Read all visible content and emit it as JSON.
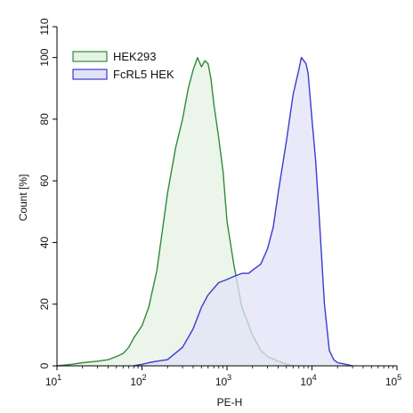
{
  "chart_data": {
    "type": "area",
    "xlabel": "PE-H",
    "ylabel": "Count [%]",
    "xscale": "log",
    "xlim": [
      10,
      100000
    ],
    "ylim": [
      0,
      110
    ],
    "grid": false,
    "legend_position": "top-left",
    "x_ticks": [
      {
        "value": 10,
        "base": "10",
        "exp": "1"
      },
      {
        "value": 100,
        "base": "10",
        "exp": "2"
      },
      {
        "value": 1000,
        "base": "10",
        "exp": "3"
      },
      {
        "value": 10000,
        "base": "10",
        "exp": "4"
      },
      {
        "value": 100000,
        "base": "10",
        "exp": "5"
      }
    ],
    "y_ticks": [
      {
        "value": 0,
        "label": "0"
      },
      {
        "value": 20,
        "label": "20"
      },
      {
        "value": 40,
        "label": "40"
      },
      {
        "value": 60,
        "label": "60"
      },
      {
        "value": 80,
        "label": "80"
      },
      {
        "value": 100,
        "label": "100"
      },
      {
        "value": 110,
        "label": "110"
      }
    ],
    "series": [
      {
        "name": "HEK293",
        "line_color": "#2e8b3a",
        "fill_color": "#e6f2e3",
        "points": [
          [
            10,
            0
          ],
          [
            15,
            0.5
          ],
          [
            20,
            1
          ],
          [
            30,
            1.5
          ],
          [
            40,
            2
          ],
          [
            50,
            3
          ],
          [
            60,
            4
          ],
          [
            70,
            6
          ],
          [
            80,
            9
          ],
          [
            100,
            13
          ],
          [
            120,
            19
          ],
          [
            150,
            31
          ],
          [
            200,
            56
          ],
          [
            250,
            71
          ],
          [
            300,
            80
          ],
          [
            350,
            90
          ],
          [
            400,
            96
          ],
          [
            450,
            100
          ],
          [
            500,
            97
          ],
          [
            550,
            99
          ],
          [
            600,
            98
          ],
          [
            650,
            93
          ],
          [
            700,
            85
          ],
          [
            800,
            74
          ],
          [
            900,
            63
          ],
          [
            1000,
            47
          ],
          [
            1200,
            33
          ],
          [
            1500,
            19
          ],
          [
            2000,
            10
          ],
          [
            2500,
            5
          ],
          [
            3000,
            3
          ],
          [
            4000,
            1.5
          ],
          [
            5000,
            0.5
          ],
          [
            6000,
            0
          ]
        ]
      },
      {
        "name": "FcRL5 HEK",
        "line_color": "#3a3ad0",
        "fill_color": "#e2e2f7",
        "points": [
          [
            80,
            0
          ],
          [
            100,
            0.5
          ],
          [
            120,
            1
          ],
          [
            150,
            1.5
          ],
          [
            200,
            2
          ],
          [
            300,
            6
          ],
          [
            400,
            12
          ],
          [
            500,
            19
          ],
          [
            600,
            23
          ],
          [
            800,
            27
          ],
          [
            1000,
            28
          ],
          [
            1200,
            29
          ],
          [
            1500,
            30
          ],
          [
            1800,
            30
          ],
          [
            2000,
            31
          ],
          [
            2500,
            33
          ],
          [
            3000,
            38
          ],
          [
            3500,
            45
          ],
          [
            4000,
            56
          ],
          [
            5000,
            73
          ],
          [
            6000,
            88
          ],
          [
            7000,
            96
          ],
          [
            7500,
            100
          ],
          [
            8500,
            98
          ],
          [
            9000,
            95
          ],
          [
            10000,
            80
          ],
          [
            11000,
            67
          ],
          [
            12000,
            51
          ],
          [
            14000,
            20
          ],
          [
            16000,
            5
          ],
          [
            18000,
            2
          ],
          [
            20000,
            1
          ],
          [
            25000,
            0.5
          ],
          [
            30000,
            0
          ]
        ]
      }
    ]
  }
}
